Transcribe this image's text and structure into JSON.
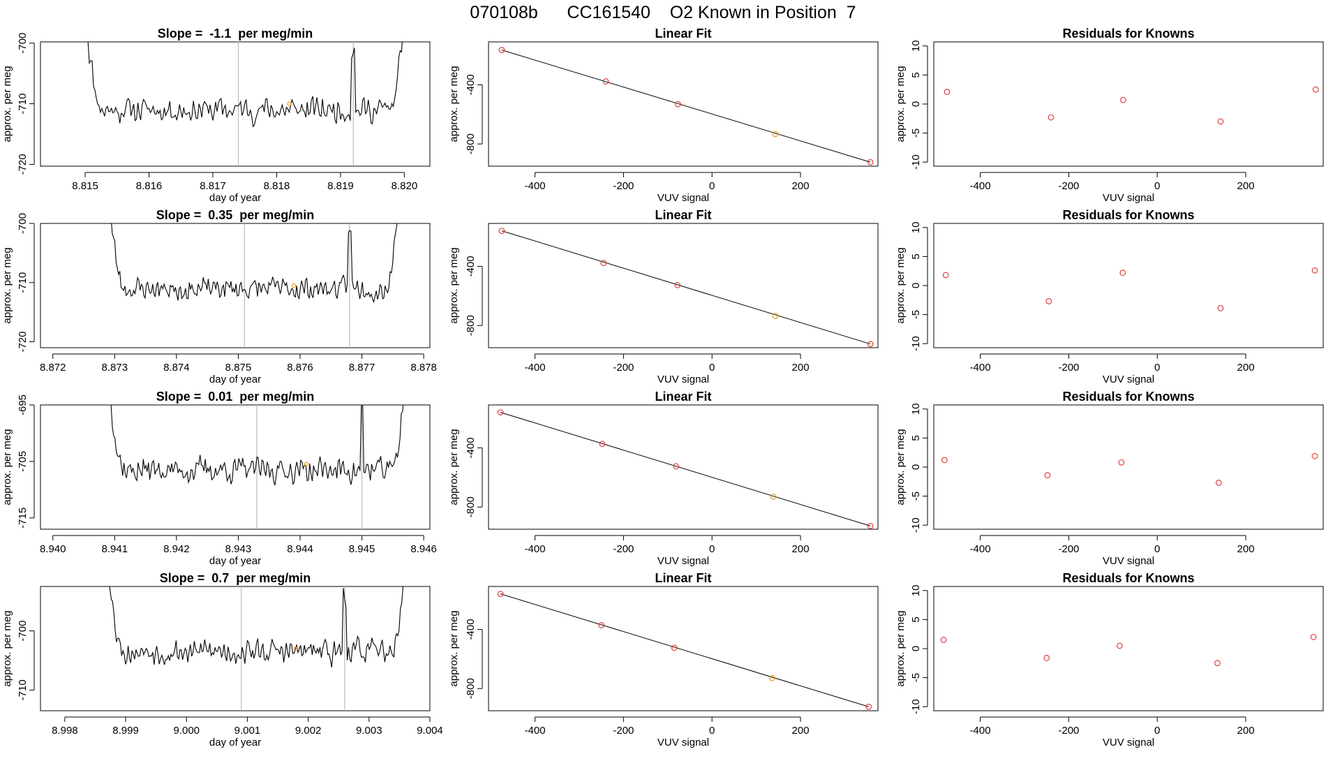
{
  "header": {
    "title": "070108b      CC161540    O2 Known in Position  7"
  },
  "colors": {
    "line": "#000000",
    "marker": "#e0403c",
    "marker_highlight": "#e89a18",
    "vline": "#bbbbbb"
  },
  "chart_data": [
    {
      "type": "line",
      "title": "Slope =  -1.1  per meg/min",
      "xlabel": "day of year",
      "ylabel": "approx. per meg",
      "xlim": [
        8.8143,
        8.8204
      ],
      "ylim": [
        -720.3,
        -699.8
      ],
      "xticks": [
        8.815,
        8.816,
        8.817,
        8.818,
        8.819,
        8.82
      ],
      "xticklabels": [
        "8.815",
        "8.816",
        "8.817",
        "8.818",
        "8.819",
        "8.820"
      ],
      "yticks": [
        -720,
        -710,
        -700
      ],
      "yticklabels": [
        "-720",
        "-710",
        "-700"
      ],
      "vlines": [
        8.8174,
        8.8192
      ],
      "trace_range": [
        8.815,
        8.82
      ],
      "trace_mean": -711.0,
      "trace_noise": 2.6,
      "edge_high": -699.8,
      "marker_x": 8.8182,
      "marker_y": -710.0,
      "seed": 11
    },
    {
      "type": "scatter",
      "title": "Linear Fit",
      "xlabel": "VUV signal",
      "ylabel": "approx. per meg",
      "xlim": [
        -505,
        375
      ],
      "ylim": [
        -950,
        -110
      ],
      "xticks": [
        -400,
        -200,
        0,
        200
      ],
      "xticklabels": [
        "-400",
        "-200",
        "0",
        "200"
      ],
      "yticks": [
        -800,
        -400
      ],
      "yticklabels": [
        "-800",
        "-400"
      ],
      "fit_line": [
        [
          -475,
          -165
        ],
        [
          358,
          -923
        ]
      ],
      "points": [
        {
          "x": -475,
          "y": -165,
          "highlight": false
        },
        {
          "x": -240,
          "y": -377,
          "highlight": false
        },
        {
          "x": -77,
          "y": -531,
          "highlight": false
        },
        {
          "x": 143,
          "y": -733,
          "highlight": true
        },
        {
          "x": 358,
          "y": -923,
          "highlight": false
        }
      ]
    },
    {
      "type": "scatter",
      "title": "Residuals for Knowns",
      "xlabel": "VUV signal",
      "ylabel": "approx. per meg",
      "xlim": [
        -505,
        375
      ],
      "ylim": [
        -10.7,
        10.7
      ],
      "xticks": [
        -400,
        -200,
        0,
        200
      ],
      "xticklabels": [
        "-400",
        "-200",
        "0",
        "200"
      ],
      "yticks": [
        -10,
        -5,
        0,
        5,
        10
      ],
      "yticklabels": [
        "-10",
        "-5",
        "0",
        "5",
        "10"
      ],
      "points": [
        {
          "x": -475,
          "y": 2.1
        },
        {
          "x": -240,
          "y": -2.3
        },
        {
          "x": -77,
          "y": 0.7
        },
        {
          "x": 143,
          "y": -3.0
        },
        {
          "x": 358,
          "y": 2.5
        }
      ]
    },
    {
      "type": "line",
      "title": "Slope =  0.35  per meg/min",
      "xlabel": "day of year",
      "ylabel": "approx. per meg",
      "xlim": [
        8.8718,
        8.8781
      ],
      "ylim": [
        -721.0,
        -700.0
      ],
      "xticks": [
        8.872,
        8.873,
        8.874,
        8.875,
        8.876,
        8.877,
        8.878
      ],
      "xticklabels": [
        "8.872",
        "8.873",
        "8.874",
        "8.875",
        "8.876",
        "8.877",
        "8.878"
      ],
      "yticks": [
        -720,
        -710,
        -700
      ],
      "yticklabels": [
        "-720",
        "-710",
        "-700"
      ],
      "vlines": [
        8.8751,
        8.8768
      ],
      "trace_range": [
        8.8729,
        8.8776
      ],
      "trace_mean": -711.0,
      "trace_noise": 2.3,
      "edge_high": -700.0,
      "marker_x": 8.8759,
      "marker_y": -710.5,
      "seed": 23
    },
    {
      "type": "scatter",
      "title": "Linear Fit",
      "xlabel": "VUV signal",
      "ylabel": "approx. per meg",
      "xlim": [
        -505,
        375
      ],
      "ylim": [
        -950,
        -110
      ],
      "xticks": [
        -400,
        -200,
        0,
        200
      ],
      "xticklabels": [
        "-400",
        "-200",
        "0",
        "200"
      ],
      "yticks": [
        -800,
        -400
      ],
      "yticklabels": [
        "-800",
        "-400"
      ],
      "fit_line": [
        [
          -475,
          -160
        ],
        [
          358,
          -925
        ]
      ],
      "points": [
        {
          "x": -475,
          "y": -160,
          "highlight": false
        },
        {
          "x": -245,
          "y": -378,
          "highlight": false
        },
        {
          "x": -78,
          "y": -527,
          "highlight": false
        },
        {
          "x": 143,
          "y": -735,
          "highlight": true
        },
        {
          "x": 358,
          "y": -925,
          "highlight": false
        }
      ]
    },
    {
      "type": "scatter",
      "title": "Residuals for Knowns",
      "xlabel": "VUV signal",
      "ylabel": "approx. per meg",
      "xlim": [
        -505,
        375
      ],
      "ylim": [
        -10.7,
        10.7
      ],
      "xticks": [
        -400,
        -200,
        0,
        200
      ],
      "xticklabels": [
        "-400",
        "-200",
        "0",
        "200"
      ],
      "yticks": [
        -10,
        -5,
        0,
        5,
        10
      ],
      "yticklabels": [
        "-10",
        "-5",
        "0",
        "5",
        "10"
      ],
      "points": [
        {
          "x": -478,
          "y": 1.8
        },
        {
          "x": -245,
          "y": -2.7
        },
        {
          "x": -78,
          "y": 2.2
        },
        {
          "x": 143,
          "y": -3.9
        },
        {
          "x": 356,
          "y": 2.6
        }
      ]
    },
    {
      "type": "line",
      "title": "Slope =  0.01  per meg/min",
      "xlabel": "day of year",
      "ylabel": "approx. per meg",
      "xlim": [
        8.9398,
        8.9461
      ],
      "ylim": [
        -717.0,
        -695.0
      ],
      "xticks": [
        8.94,
        8.941,
        8.942,
        8.943,
        8.944,
        8.945,
        8.946
      ],
      "xticklabels": [
        "8.940",
        "8.941",
        "8.942",
        "8.943",
        "8.944",
        "8.945",
        "8.946"
      ],
      "yticks": [
        -715,
        -705,
        -695
      ],
      "yticklabels": [
        "-715",
        "-705",
        "-695"
      ],
      "vlines": [
        8.9433,
        8.945
      ],
      "trace_range": [
        8.9409,
        8.9457
      ],
      "trace_mean": -706.5,
      "trace_noise": 2.8,
      "edge_high": -695.0,
      "marker_x": 8.9441,
      "marker_y": -705.5,
      "seed": 37
    },
    {
      "type": "scatter",
      "title": "Linear Fit",
      "xlabel": "VUV signal",
      "ylabel": "approx. per meg",
      "xlim": [
        -505,
        375
      ],
      "ylim": [
        -950,
        -110
      ],
      "xticks": [
        -400,
        -200,
        0,
        200
      ],
      "xticklabels": [
        "-400",
        "-200",
        "0",
        "200"
      ],
      "yticks": [
        -800,
        -400
      ],
      "yticklabels": [
        "-800",
        "-400"
      ],
      "fit_line": [
        [
          -478,
          -160
        ],
        [
          358,
          -928
        ]
      ],
      "points": [
        {
          "x": -478,
          "y": -160,
          "highlight": false
        },
        {
          "x": -248,
          "y": -373,
          "highlight": false
        },
        {
          "x": -81,
          "y": -525,
          "highlight": false
        },
        {
          "x": 139,
          "y": -730,
          "highlight": true
        },
        {
          "x": 358,
          "y": -928,
          "highlight": false
        }
      ]
    },
    {
      "type": "scatter",
      "title": "Residuals for Knowns",
      "xlabel": "VUV signal",
      "ylabel": "approx. per meg",
      "xlim": [
        -505,
        375
      ],
      "ylim": [
        -10.7,
        10.7
      ],
      "xticks": [
        -400,
        -200,
        0,
        200
      ],
      "xticklabels": [
        "-400",
        "-200",
        "0",
        "200"
      ],
      "yticks": [
        -10,
        -5,
        0,
        5,
        10
      ],
      "yticklabels": [
        "-10",
        "-5",
        "0",
        "5",
        "10"
      ],
      "points": [
        {
          "x": -481,
          "y": 1.2
        },
        {
          "x": -248,
          "y": -1.4
        },
        {
          "x": -81,
          "y": 0.8
        },
        {
          "x": 139,
          "y": -2.7
        },
        {
          "x": 356,
          "y": 1.9
        }
      ]
    },
    {
      "type": "line",
      "title": "Slope =  0.7  per meg/min",
      "xlabel": "day of year",
      "ylabel": "approx. per meg",
      "xlim": [
        8.9976,
        9.004
      ],
      "ylim": [
        -713.5,
        -692.5
      ],
      "xticks": [
        8.998,
        8.999,
        9.0,
        9.001,
        9.002,
        9.003,
        9.004
      ],
      "xticklabels": [
        "8.998",
        "8.999",
        "9.000",
        "9.001",
        "9.002",
        "9.003",
        "9.004"
      ],
      "yticks": [
        -710,
        -700
      ],
      "yticklabels": [
        "-710",
        "-700"
      ],
      "vlines": [
        9.0009,
        9.0026
      ],
      "trace_range": [
        8.9987,
        9.0036
      ],
      "trace_mean": -703.5,
      "trace_noise": 2.5,
      "edge_high": -692.5,
      "marker_x": 9.0018,
      "marker_y": -703.0,
      "seed": 53
    },
    {
      "type": "scatter",
      "title": "Linear Fit",
      "xlabel": "VUV signal",
      "ylabel": "approx. per meg",
      "xlim": [
        -505,
        375
      ],
      "ylim": [
        -950,
        -110
      ],
      "xticks": [
        -400,
        -200,
        0,
        200
      ],
      "xticklabels": [
        "-400",
        "-200",
        "0",
        "200"
      ],
      "yticks": [
        -800,
        -400
      ],
      "yticklabels": [
        "-800",
        "-400"
      ],
      "fit_line": [
        [
          -478,
          -160
        ],
        [
          354,
          -923
        ]
      ],
      "points": [
        {
          "x": -478,
          "y": -160,
          "highlight": false
        },
        {
          "x": -250,
          "y": -372,
          "highlight": false
        },
        {
          "x": -85,
          "y": -525,
          "highlight": false
        },
        {
          "x": 136,
          "y": -729,
          "highlight": true
        },
        {
          "x": 354,
          "y": -923,
          "highlight": false
        }
      ]
    },
    {
      "type": "scatter",
      "title": "Residuals for Knowns",
      "xlabel": "VUV signal",
      "ylabel": "approx. per meg",
      "xlim": [
        -505,
        375
      ],
      "ylim": [
        -10.7,
        10.7
      ],
      "xticks": [
        -400,
        -200,
        0,
        200
      ],
      "xticklabels": [
        "-400",
        "-200",
        "0",
        "200"
      ],
      "yticks": [
        -10,
        -5,
        0,
        5,
        10
      ],
      "yticklabels": [
        "-10",
        "-5",
        "0",
        "5",
        "10"
      ],
      "points": [
        {
          "x": -483,
          "y": 1.5
        },
        {
          "x": -250,
          "y": -1.6
        },
        {
          "x": -85,
          "y": 0.5
        },
        {
          "x": 136,
          "y": -2.5
        },
        {
          "x": 353,
          "y": 2.0
        }
      ]
    }
  ]
}
